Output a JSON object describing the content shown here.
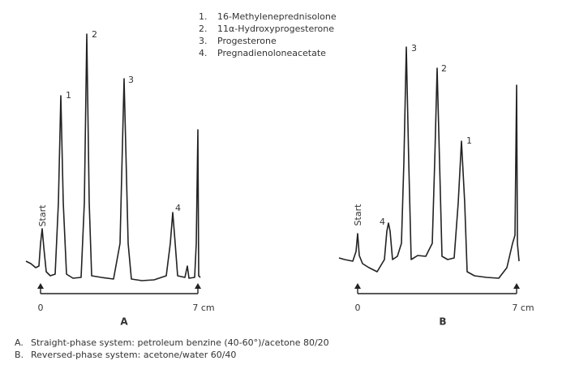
{
  "legend": [
    {
      "number": "1.",
      "text": "16-Methyleneprednisolone"
    },
    {
      "number": "2.",
      "text": "11α-Hydroxyprogesterone"
    },
    {
      "number": "3.",
      "text": "Progesterone"
    },
    {
      "number": "4.",
      "text": "Pregnadienoloneacetate"
    }
  ],
  "panels": [
    {
      "label": "A",
      "start": "Start",
      "peaks": [
        "1",
        "2",
        "3",
        "4"
      ],
      "axis_start": "0",
      "axis_end": "7 cm"
    },
    {
      "label": "B",
      "start": "Start",
      "peaks": [
        "4",
        "3",
        "2",
        "1"
      ],
      "axis_start": "0",
      "axis_end": "7 cm"
    }
  ],
  "footnotes": [
    {
      "key": "A.",
      "text": "Straight-phase system: petroleum benzine (40-60°)/acetone 80/20"
    },
    {
      "key": "B.",
      "text": "Reversed-phase system: acetone/water 60/40"
    }
  ]
}
